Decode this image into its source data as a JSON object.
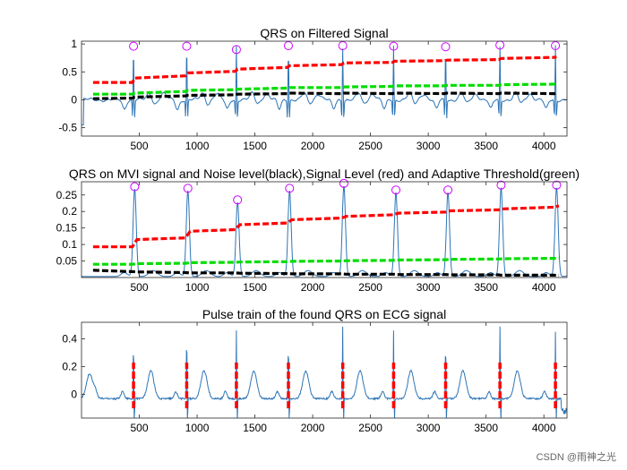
{
  "watermark": "CSDN @雨神之光",
  "chart_data": [
    {
      "type": "line",
      "title": "QRS on Filtered Signal",
      "xlim": [
        0,
        4200
      ],
      "ylim": [
        -0.65,
        1.05
      ],
      "x_ticks": [
        500,
        1000,
        1500,
        2000,
        2500,
        3000,
        3500,
        4000
      ],
      "y_ticks": [
        -0.5,
        0,
        0.5,
        1
      ],
      "y_tick_labels": [
        "-0.5",
        "0",
        "0.5",
        "1"
      ],
      "peaks": {
        "x": [
          450,
          910,
          1340,
          1790,
          2260,
          2700,
          3150,
          3620,
          4100
        ],
        "y": [
          0.96,
          0.96,
          0.9,
          0.97,
          0.97,
          0.96,
          0.95,
          0.98,
          0.97
        ]
      },
      "series": [
        {
          "name": "Filtered signal",
          "color": "#2e75b6"
        },
        {
          "name": "Signal level",
          "color": "#ff0000",
          "x": [
            100,
            440,
            460,
            900,
            920,
            1330,
            1350,
            1780,
            1800,
            2250,
            2270,
            2690,
            2710,
            3140,
            3160,
            3610,
            3630,
            4090,
            4110
          ],
          "y": [
            0.31,
            0.31,
            0.39,
            0.43,
            0.48,
            0.51,
            0.55,
            0.58,
            0.61,
            0.63,
            0.66,
            0.67,
            0.69,
            0.7,
            0.71,
            0.72,
            0.74,
            0.76,
            0.77
          ]
        },
        {
          "name": "Noise level",
          "color": "#000000",
          "x": [
            100,
            440,
            460,
            900,
            920,
            1330,
            1350,
            1780,
            1800,
            2250,
            2270,
            2690,
            2710,
            3140,
            3160,
            3610,
            3630,
            4090,
            4110
          ],
          "y": [
            0.02,
            0.03,
            0.05,
            0.07,
            0.08,
            0.09,
            0.1,
            0.11,
            0.12,
            0.11,
            0.12,
            0.11,
            0.12,
            0.11,
            0.12,
            0.11,
            0.12,
            0.11,
            0.12
          ]
        },
        {
          "name": "Adaptive threshold",
          "color": "#00dd00",
          "x": [
            100,
            440,
            460,
            900,
            920,
            1330,
            1350,
            1780,
            1800,
            2250,
            2270,
            2690,
            2710,
            3140,
            3160,
            3610,
            3630,
            4090,
            4110
          ],
          "y": [
            0.1,
            0.1,
            0.12,
            0.15,
            0.17,
            0.18,
            0.19,
            0.21,
            0.22,
            0.22,
            0.23,
            0.24,
            0.25,
            0.25,
            0.26,
            0.26,
            0.27,
            0.28,
            0.28
          ]
        }
      ]
    },
    {
      "type": "line",
      "title": "QRS on MVI signal and Noise level(black),Signal Level (red) and Adaptive Threshold(green)",
      "xlim": [
        0,
        4200
      ],
      "ylim": [
        0,
        0.29
      ],
      "x_ticks": [
        500,
        1000,
        1500,
        2000,
        2500,
        3000,
        3500,
        4000
      ],
      "y_ticks": [
        0.05,
        0.1,
        0.15,
        0.2,
        0.25
      ],
      "y_tick_labels": [
        "0.05",
        "0.1",
        "0.15",
        "0.2",
        "0.25"
      ],
      "peaks": {
        "x": [
          460,
          920,
          1350,
          1800,
          2270,
          2720,
          3170,
          3630,
          4110
        ],
        "y": [
          0.275,
          0.27,
          0.235,
          0.27,
          0.285,
          0.265,
          0.265,
          0.28,
          0.28
        ]
      },
      "series": [
        {
          "name": "MVI signal",
          "color": "#2e75b6"
        },
        {
          "name": "Signal level",
          "color": "#ff0000",
          "x": [
            100,
            440,
            480,
            900,
            940,
            1330,
            1370,
            1780,
            1820,
            2250,
            2290,
            2700,
            2740,
            3150,
            3190,
            3610,
            3650,
            4090,
            4130
          ],
          "y": [
            0.093,
            0.093,
            0.115,
            0.12,
            0.14,
            0.145,
            0.16,
            0.165,
            0.175,
            0.18,
            0.185,
            0.19,
            0.195,
            0.198,
            0.202,
            0.205,
            0.208,
            0.213,
            0.217
          ]
        },
        {
          "name": "Noise level",
          "color": "#000000",
          "x": [
            100,
            440,
            480,
            900,
            940,
            1330,
            1370,
            1780,
            1820,
            2250,
            2290,
            2700,
            2740,
            3150,
            3190,
            3610,
            3630,
            4090,
            4130
          ],
          "y": [
            0.022,
            0.018,
            0.017,
            0.015,
            0.014,
            0.014,
            0.013,
            0.012,
            0.011,
            0.011,
            0.01,
            0.01,
            0.009,
            0.009,
            0.008,
            0.008,
            0.007,
            0.007,
            0.006
          ]
        },
        {
          "name": "Adaptive threshold",
          "color": "#00dd00",
          "x": [
            100,
            440,
            480,
            900,
            940,
            1330,
            1370,
            1780,
            1820,
            2250,
            2290,
            2700,
            2740,
            3150,
            3190,
            3610,
            3650,
            4090,
            4130
          ],
          "y": [
            0.04,
            0.04,
            0.042,
            0.043,
            0.045,
            0.046,
            0.047,
            0.048,
            0.049,
            0.05,
            0.051,
            0.052,
            0.053,
            0.054,
            0.055,
            0.056,
            0.057,
            0.058,
            0.059
          ]
        }
      ]
    },
    {
      "type": "line",
      "title": "Pulse train of the found QRS on ECG signal",
      "xlim": [
        0,
        4200
      ],
      "ylim": [
        -0.17,
        0.52
      ],
      "x_ticks": [
        500,
        1000,
        1500,
        2000,
        2500,
        3000,
        3500,
        4000
      ],
      "y_ticks": [
        0,
        0.2,
        0.4
      ],
      "y_tick_labels": [
        "0",
        "0.2",
        "0.4"
      ],
      "pulse_positions": [
        450,
        910,
        1340,
        1790,
        2260,
        2700,
        3150,
        3620,
        4100
      ],
      "pulse_range": [
        -0.1,
        0.23
      ],
      "series": [
        {
          "name": "ECG signal",
          "color": "#2e75b6"
        },
        {
          "name": "QRS pulse train",
          "color": "#ff0000"
        }
      ]
    }
  ]
}
